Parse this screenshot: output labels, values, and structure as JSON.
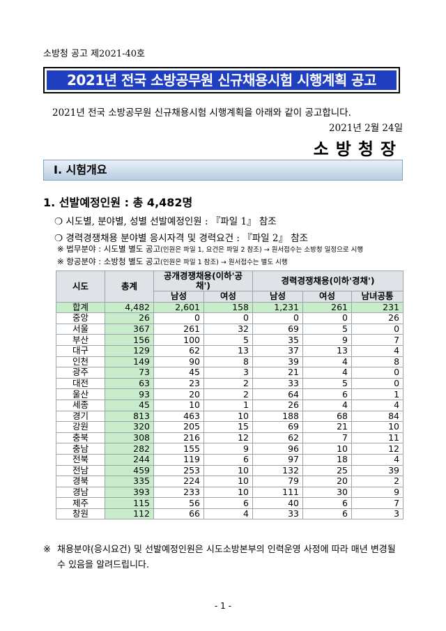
{
  "notice_no": "소방청 공고 제2021-40호",
  "title": "2021년 전국 소방공무원 신규채용시험 시행계획 공고",
  "intro": "2021년 전국 소방공무원 신규채용시험 시행계획을 아래와 같이 공고합니다.",
  "date": "2021년 2월 24일",
  "agency": "소방청장",
  "section": "Ⅰ. 시험개요",
  "subhead": "1. 선발예정인원 : 총 4,482명",
  "bullets": [
    "❍ 시도별, 분야별, 성별 선발예정인원 : 『파일 1』 참조",
    "❍ 경력경쟁채용 분야별 응시자격 및 경력요건 : 『파일 2』 참조"
  ],
  "notes": [
    {
      "main": "※ 법무분야 : 시도별 별도 공고",
      "small": "(인원은 파일 1, 요건은 파일 2 참조) → 원서접수는 소방청 일정으로 시행"
    },
    {
      "main": "※ 항공분야 : 소방청 별도 공고",
      "small": "(인원은 파일 1 참조) → 원서접수는 별도 시행"
    }
  ],
  "table": {
    "h_region": "시도",
    "h_total": "총계",
    "h_open": "공개경쟁채용(이하'공채')",
    "h_career": "경력경쟁채용(이하'경채')",
    "h_male": "남성",
    "h_female": "여성",
    "h_both": "남녀공통",
    "rows": [
      [
        "합계",
        "4,482",
        "2,601",
        "158",
        "1,231",
        "261",
        "231"
      ],
      [
        "중앙",
        "26",
        "0",
        "0",
        "0",
        "0",
        "26"
      ],
      [
        "서울",
        "367",
        "261",
        "32",
        "69",
        "5",
        "0"
      ],
      [
        "부산",
        "156",
        "100",
        "5",
        "35",
        "9",
        "7"
      ],
      [
        "대구",
        "129",
        "62",
        "13",
        "37",
        "13",
        "4"
      ],
      [
        "인천",
        "149",
        "90",
        "8",
        "39",
        "4",
        "8"
      ],
      [
        "광주",
        "73",
        "45",
        "3",
        "21",
        "4",
        "0"
      ],
      [
        "대전",
        "63",
        "23",
        "2",
        "33",
        "5",
        "0"
      ],
      [
        "울산",
        "93",
        "20",
        "2",
        "64",
        "6",
        "1"
      ],
      [
        "세종",
        "45",
        "10",
        "1",
        "26",
        "4",
        "4"
      ],
      [
        "경기",
        "813",
        "463",
        "10",
        "188",
        "68",
        "84"
      ],
      [
        "강원",
        "320",
        "205",
        "15",
        "69",
        "21",
        "10"
      ],
      [
        "충북",
        "308",
        "216",
        "12",
        "62",
        "7",
        "11"
      ],
      [
        "충남",
        "282",
        "155",
        "9",
        "96",
        "10",
        "12"
      ],
      [
        "전북",
        "244",
        "119",
        "6",
        "97",
        "18",
        "4"
      ],
      [
        "전남",
        "459",
        "253",
        "10",
        "132",
        "25",
        "39"
      ],
      [
        "경북",
        "335",
        "224",
        "10",
        "79",
        "20",
        "2"
      ],
      [
        "경남",
        "393",
        "233",
        "10",
        "111",
        "30",
        "9"
      ],
      [
        "제주",
        "115",
        "56",
        "6",
        "40",
        "6",
        "7"
      ],
      [
        "창원",
        "112",
        "66",
        "4",
        "33",
        "6",
        "3"
      ]
    ]
  },
  "footnote_mark": "※",
  "footnote": "채용분야(응시요건) 및 선발예정인원은 시도소방본부의 인력운영 사정에 따라 매년 변경될 수 있음을 알려드립니다.",
  "page_number": "- 1 -"
}
